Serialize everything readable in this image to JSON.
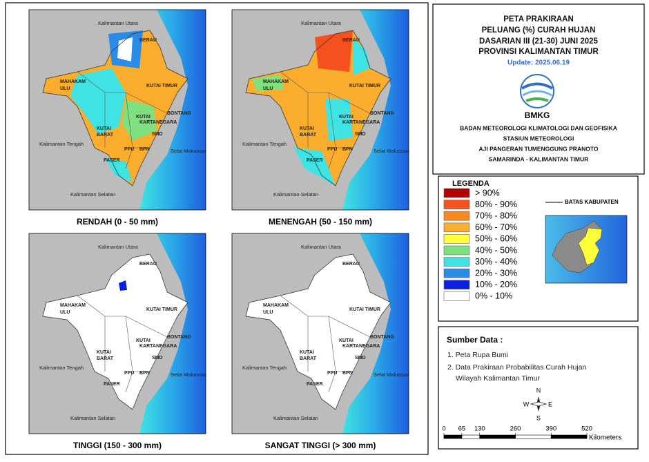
{
  "header": {
    "title_lines": [
      "PETA PRAKIRAAN",
      "PELUANG (%) CURAH HUJAN",
      "DASARIAN III (21-30) JUNI 2025",
      "PROVINSI KALIMANTAN TIMUR"
    ],
    "update": "Update: 2025.06.19",
    "logo_text": "BMKG",
    "agency_lines": [
      "BADAN METEOROLOGI KLIMATOLOGI DAN GEOFISIKA",
      "STASIUN METEOROLOGI",
      "AJI PANGERAN TUMENGGUNG PRANOTO",
      "SAMARINDA - KALIMANTAN TIMUR"
    ]
  },
  "maps": [
    {
      "caption": "RENDAH (0 - 50 mm)"
    },
    {
      "caption": "MENENGAH (50 - 150 mm)"
    },
    {
      "caption": "TINGGI (150 - 300 mm)"
    },
    {
      "caption": "SANGAT TINGGI (> 300 mm)"
    }
  ],
  "map_labels": [
    "Kalimantan Utara",
    "BERAU",
    "MAHAKAM",
    "ULU",
    "KUTAI TIMUR",
    "BONTANG",
    "KUTAI",
    "KARTANEGARA",
    "KUTAI",
    "BARAT",
    "SMD",
    "PPU",
    "BPN",
    "Kalimantan Tengah",
    "Selat Makassar",
    "PASER",
    "Kalimantan Selatan"
  ],
  "legend": {
    "title": "LEGENDA",
    "items": [
      {
        "label": "> 90%",
        "color": "#b00000"
      },
      {
        "label": "80% - 90%",
        "color": "#f4511e"
      },
      {
        "label": "70% - 80%",
        "color": "#f7891f"
      },
      {
        "label": "60% - 70%",
        "color": "#fbad2e"
      },
      {
        "label": "50% - 60%",
        "color": "#ffff3a"
      },
      {
        "label": "40% - 50%",
        "color": "#7ee07e"
      },
      {
        "label": "30% - 40%",
        "color": "#3fe3e3"
      },
      {
        "label": "20% - 30%",
        "color": "#2b8ce8"
      },
      {
        "label": "10% - 20%",
        "color": "#0b1fe0"
      },
      {
        "label": "0% - 10%",
        "color": "#ffffff"
      }
    ],
    "boundary": "BATAS KABUPATEN"
  },
  "source": {
    "title": "Sumber Data :",
    "items": [
      "1. Peta Rupa Bumi",
      "2. Data Prakiraan Probabilitas Curah Hujan",
      "Wilayah Kalimantan Timur"
    ]
  },
  "compass": {
    "n": "N",
    "e": "E",
    "s": "S",
    "w": "W"
  },
  "scale": {
    "ticks": [
      0,
      65,
      130,
      260,
      390,
      520
    ],
    "unit": "Kilometers"
  }
}
